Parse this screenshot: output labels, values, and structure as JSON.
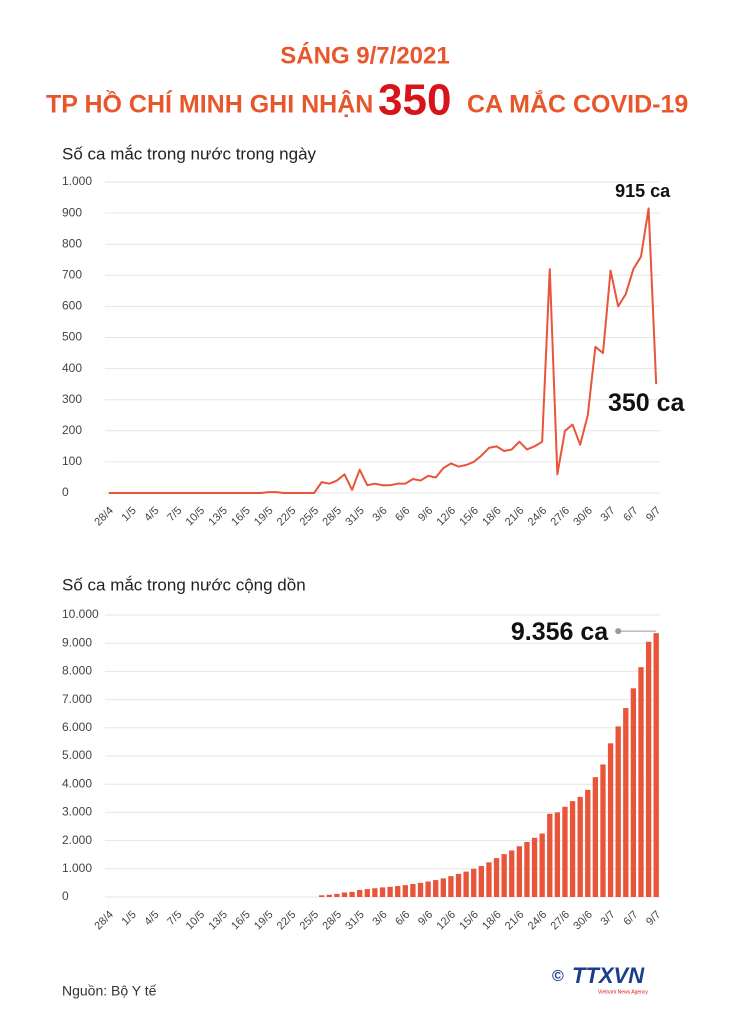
{
  "header": {
    "line1": "SÁNG 9/7/2021",
    "line2_start": "TP HỒ CHÍ MINH GHI NHẬN",
    "line2_number": "350",
    "line2_end": "CA MẮC COVID-19"
  },
  "chart_data": [
    {
      "type": "line",
      "title": "Số ca mắc trong nước trong ngày",
      "color": "#e8553a",
      "grid": true,
      "categories": [
        "28/4",
        null,
        null,
        "1/5",
        null,
        null,
        "4/5",
        null,
        null,
        "7/5",
        null,
        null,
        "10/5",
        null,
        null,
        "13/5",
        null,
        null,
        "16/5",
        null,
        null,
        "19/5",
        null,
        null,
        "22/5",
        null,
        null,
        "25/5",
        null,
        null,
        "28/5",
        null,
        null,
        "31/5",
        null,
        null,
        "3/6",
        null,
        null,
        "6/6",
        null,
        null,
        "9/6",
        null,
        null,
        "12/6",
        null,
        null,
        "15/6",
        null,
        null,
        "18/6",
        null,
        null,
        "21/6",
        null,
        null,
        "24/6",
        null,
        null,
        "27/6",
        null,
        null,
        "30/6",
        null,
        null,
        "3/7",
        null,
        null,
        "6/7",
        null,
        null,
        "9/7"
      ],
      "values": [
        0,
        0,
        0,
        0,
        0,
        0,
        0,
        0,
        0,
        0,
        0,
        0,
        0,
        0,
        0,
        0,
        0,
        0,
        0,
        0,
        0,
        3,
        3,
        0,
        0,
        0,
        0,
        0,
        35,
        30,
        40,
        60,
        10,
        75,
        25,
        30,
        25,
        25,
        30,
        30,
        45,
        40,
        55,
        50,
        80,
        95,
        85,
        90,
        100,
        120,
        145,
        150,
        135,
        140,
        165,
        140,
        150,
        165,
        720,
        60,
        200,
        220,
        155,
        250,
        470,
        450,
        715,
        600,
        640,
        720,
        760,
        915,
        350
      ],
      "value_labels": [
        null,
        null,
        null,
        null,
        null,
        null,
        null,
        null,
        null,
        null,
        null,
        null,
        null,
        null,
        null,
        null,
        null,
        null,
        null,
        null,
        null,
        null,
        null,
        null,
        null,
        null,
        null,
        null,
        null,
        null,
        null,
        null,
        null,
        null,
        null,
        null,
        null,
        null,
        null,
        null,
        null,
        null,
        null,
        null,
        null,
        null,
        null,
        null,
        null,
        null,
        null,
        null,
        null,
        null,
        null,
        null,
        null,
        null,
        null,
        null,
        null,
        null,
        null,
        null,
        null,
        null,
        null,
        null,
        null,
        null,
        null,
        "915 ca",
        "350 ca"
      ],
      "ylim": [
        0,
        1000
      ],
      "yticks": [
        0,
        100,
        200,
        300,
        400,
        500,
        600,
        700,
        800,
        900,
        {
          "value": 1000,
          "label": "1.000"
        }
      ]
    },
    {
      "type": "bar",
      "title": "Số ca mắc trong nước cộng dồn",
      "color": "#e8553a",
      "grid": true,
      "categories": [
        "28/4",
        null,
        null,
        "1/5",
        null,
        null,
        "4/5",
        null,
        null,
        "7/5",
        null,
        null,
        "10/5",
        null,
        null,
        "13/5",
        null,
        null,
        "16/5",
        null,
        null,
        "19/5",
        null,
        null,
        "22/5",
        null,
        null,
        "25/5",
        null,
        null,
        "28/5",
        null,
        null,
        "31/5",
        null,
        null,
        "3/6",
        null,
        null,
        "6/6",
        null,
        null,
        "9/6",
        null,
        null,
        "12/6",
        null,
        null,
        "15/6",
        null,
        null,
        "18/6",
        null,
        null,
        "21/6",
        null,
        null,
        "24/6",
        null,
        null,
        "27/6",
        null,
        null,
        "30/6",
        null,
        null,
        "3/7",
        null,
        null,
        "6/7",
        null,
        null,
        "9/7"
      ],
      "values": [
        0,
        0,
        0,
        0,
        0,
        0,
        0,
        0,
        0,
        0,
        0,
        0,
        0,
        0,
        0,
        0,
        0,
        0,
        0,
        0,
        0,
        0,
        0,
        0,
        0,
        0,
        0,
        0,
        60,
        80,
        110,
        160,
        180,
        250,
        280,
        310,
        340,
        360,
        390,
        420,
        460,
        500,
        550,
        600,
        660,
        740,
        820,
        900,
        1000,
        1100,
        1230,
        1380,
        1520,
        1650,
        1800,
        1950,
        2100,
        2250,
        2950,
        3000,
        3200,
        3400,
        3550,
        3800,
        4250,
        4700,
        5450,
        6050,
        6700,
        7400,
        8150,
        9050,
        9356
      ],
      "value_labels": [
        null,
        null,
        null,
        null,
        null,
        null,
        null,
        null,
        null,
        null,
        null,
        null,
        null,
        null,
        null,
        null,
        null,
        null,
        null,
        null,
        null,
        null,
        null,
        null,
        null,
        null,
        null,
        null,
        null,
        null,
        null,
        null,
        null,
        null,
        null,
        null,
        null,
        null,
        null,
        null,
        null,
        null,
        null,
        null,
        null,
        null,
        null,
        null,
        null,
        null,
        null,
        null,
        null,
        null,
        null,
        null,
        null,
        null,
        null,
        null,
        null,
        null,
        null,
        null,
        null,
        null,
        null,
        null,
        null,
        null,
        null,
        null,
        "9.356 ca"
      ],
      "ylim": [
        0,
        10000
      ],
      "yticks": [
        0,
        {
          "value": 1000,
          "label": "1.000"
        },
        {
          "value": 2000,
          "label": "2.000"
        },
        {
          "value": 3000,
          "label": "3.000"
        },
        {
          "value": 4000,
          "label": "4.000"
        },
        {
          "value": 5000,
          "label": "5.000"
        },
        {
          "value": 6000,
          "label": "6.000"
        },
        {
          "value": 7000,
          "label": "7.000"
        },
        {
          "value": 8000,
          "label": "8.000"
        },
        {
          "value": 9000,
          "label": "9.000"
        },
        {
          "value": 10000,
          "label": "10.000"
        }
      ]
    }
  ],
  "footer": {
    "source": "Nguồn: Bộ Y tế",
    "logo": "TTXVN",
    "logo_sub": "Vietnam News Agency"
  }
}
